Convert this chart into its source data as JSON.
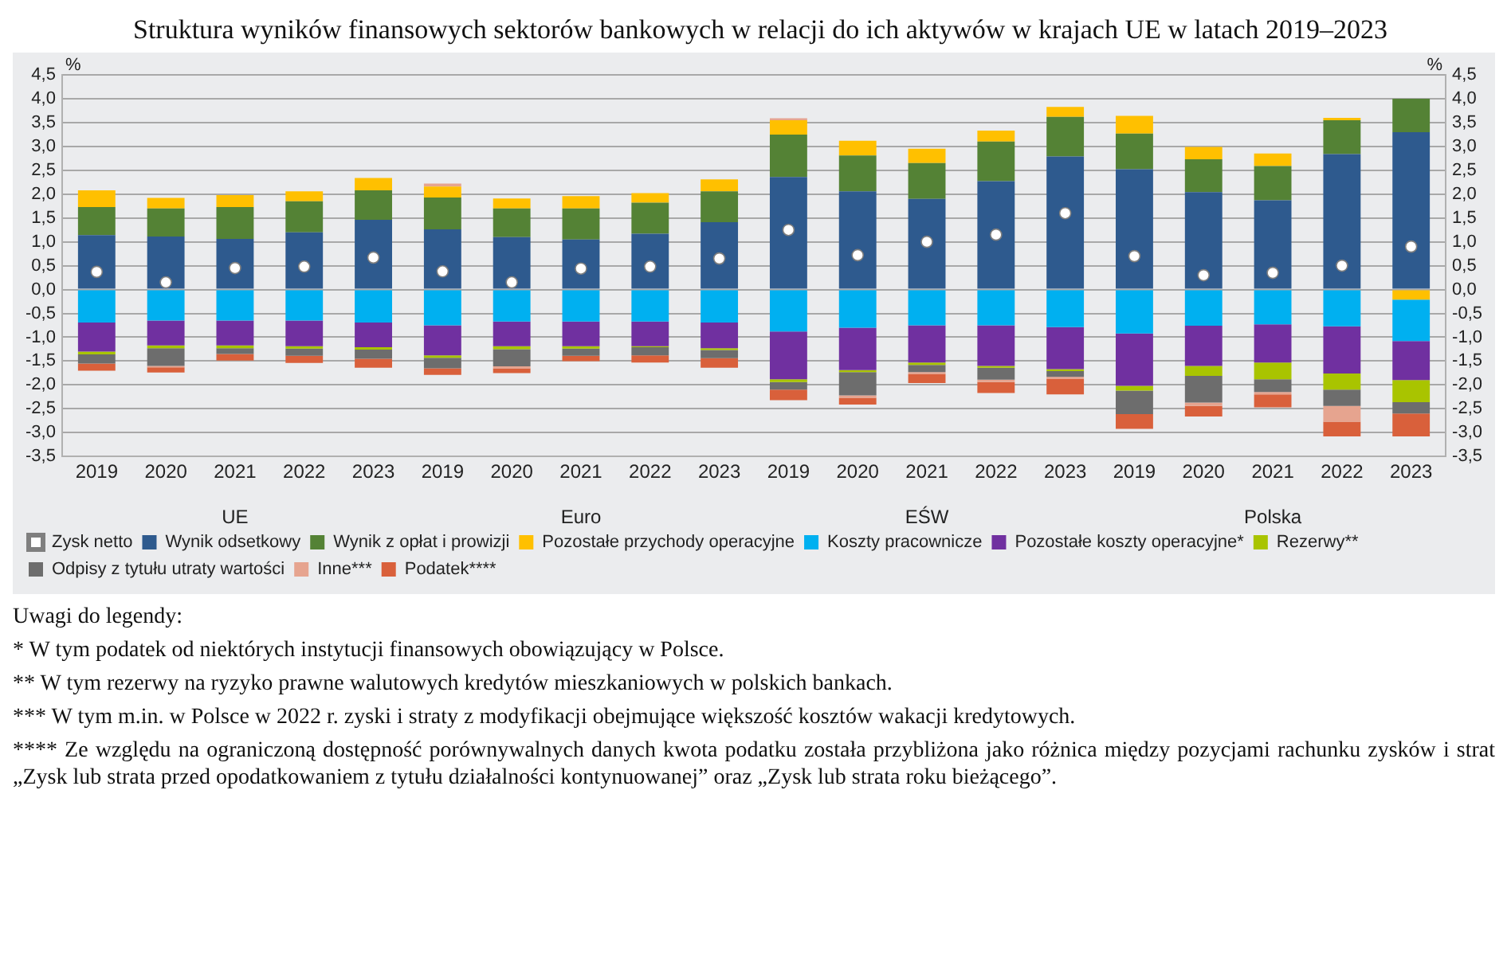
{
  "chart_data": {
    "type": "bar",
    "stacked": true,
    "title": "Struktura wyników finansowych sektorów bankowych w relacji do ich aktywów w krajach UE w latach 2019–2023",
    "ylabel": "%",
    "y2label": "%",
    "categories": [
      "2019",
      "2020",
      "2021",
      "2022",
      "2023",
      "2019",
      "2020",
      "2021",
      "2022",
      "2023",
      "2019",
      "2020",
      "2021",
      "2022",
      "2023",
      "2019",
      "2020",
      "2021",
      "2022",
      "2023"
    ],
    "series": [
      {
        "name": "Wynik odsetkowy",
        "color": "#2e5a8e",
        "values": [
          1.14,
          1.11,
          1.06,
          1.2,
          1.46,
          1.26,
          1.1,
          1.05,
          1.17,
          1.41,
          2.36,
          2.06,
          1.9,
          2.27,
          2.79,
          2.52,
          2.04,
          1.87,
          2.84,
          3.3
        ]
      },
      {
        "name": "Wynik z opłat i prowizji",
        "color": "#548235",
        "values": [
          0.59,
          0.59,
          0.67,
          0.65,
          0.62,
          0.67,
          0.6,
          0.65,
          0.65,
          0.65,
          0.89,
          0.75,
          0.75,
          0.83,
          0.83,
          0.75,
          0.69,
          0.72,
          0.71,
          0.7
        ]
      },
      {
        "name": "Pozostałe przychody operacyjne",
        "color": "#ffc000",
        "values": [
          0.35,
          0.22,
          0.25,
          0.21,
          0.26,
          0.23,
          0.21,
          0.26,
          0.2,
          0.25,
          0.3,
          0.31,
          0.3,
          0.23,
          0.21,
          0.37,
          0.26,
          0.26,
          0.05,
          -0.21
        ]
      },
      {
        "name": "Koszty pracownicze",
        "color": "#00b0f0",
        "values": [
          -0.69,
          -0.65,
          -0.65,
          -0.65,
          -0.69,
          -0.75,
          -0.67,
          -0.67,
          -0.67,
          -0.69,
          -0.88,
          -0.8,
          -0.75,
          -0.75,
          -0.79,
          -0.92,
          -0.76,
          -0.73,
          -0.77,
          -0.87
        ]
      },
      {
        "name": "Pozostałe koszty operacyjne*",
        "color": "#7030a0",
        "values": [
          -0.61,
          -0.52,
          -0.52,
          -0.54,
          -0.52,
          -0.63,
          -0.52,
          -0.52,
          -0.52,
          -0.54,
          -1.0,
          -0.89,
          -0.78,
          -0.85,
          -0.88,
          -1.1,
          -0.84,
          -0.8,
          -0.99,
          -0.82
        ]
      },
      {
        "name": "Rezerwy**",
        "color": "#a9c400",
        "values": [
          -0.06,
          -0.06,
          -0.06,
          -0.05,
          -0.05,
          -0.05,
          -0.06,
          -0.05,
          -0.02,
          -0.04,
          -0.06,
          -0.04,
          -0.05,
          -0.04,
          -0.04,
          -0.1,
          -0.21,
          -0.35,
          -0.34,
          -0.46
        ]
      },
      {
        "name": "Odpisy z tytułu utraty wartości",
        "color": "#6d6d6d",
        "values": [
          -0.19,
          -0.37,
          -0.12,
          -0.15,
          -0.19,
          -0.22,
          -0.36,
          -0.15,
          -0.17,
          -0.17,
          -0.16,
          -0.49,
          -0.15,
          -0.25,
          -0.12,
          -0.49,
          -0.56,
          -0.27,
          -0.34,
          -0.24
        ]
      },
      {
        "name": "Inne***",
        "color": "#e6a48f",
        "values": [
          null,
          -0.03,
          null,
          null,
          null,
          0.06,
          -0.04,
          null,
          null,
          null,
          0.04,
          -0.05,
          -0.04,
          -0.05,
          -0.04,
          null,
          -0.07,
          -0.05,
          -0.33,
          null
        ]
      },
      {
        "name": "Podatek****",
        "color": "#d9603b",
        "values": [
          -0.15,
          -0.11,
          -0.14,
          -0.15,
          -0.19,
          -0.14,
          -0.1,
          -0.11,
          -0.15,
          -0.2,
          -0.22,
          -0.14,
          -0.19,
          -0.23,
          -0.33,
          -0.31,
          -0.22,
          -0.27,
          -0.31,
          -0.48
        ]
      },
      {
        "name": "Zysk netto",
        "type": "scatter",
        "color": "#ffffff",
        "values": [
          0.37,
          0.15,
          0.45,
          0.48,
          0.67,
          0.38,
          0.15,
          0.44,
          0.48,
          0.65,
          1.25,
          0.72,
          1.0,
          1.15,
          1.6,
          0.7,
          0.3,
          0.35,
          0.5,
          0.9
        ]
      }
    ],
    "ylim": [
      -3.5,
      4.5
    ],
    "yticks": [
      {
        "value": -3.5,
        "label": "-3,5"
      },
      {
        "value": -3,
        "label": "-3,0"
      },
      {
        "value": -2.5,
        "label": "-2,5"
      },
      {
        "value": -2,
        "label": "-2,0"
      },
      {
        "value": -1.5,
        "label": "-1,5"
      },
      {
        "value": -1,
        "label": "-1,0"
      },
      {
        "value": -0.5,
        "label": "-0,5"
      },
      {
        "value": 0,
        "label": "0,0"
      },
      {
        "value": 0.5,
        "label": "0,5"
      },
      {
        "value": 1,
        "label": "1,0"
      },
      {
        "value": 1.5,
        "label": "1,5"
      },
      {
        "value": 2,
        "label": "2,0"
      },
      {
        "value": 2.5,
        "label": "2,5"
      },
      {
        "value": 3,
        "label": "3,0"
      },
      {
        "value": 3.5,
        "label": "3,5"
      },
      {
        "value": 4,
        "label": "4,0"
      },
      {
        "value": 4.5,
        "label": "4,5"
      }
    ],
    "y2lim": [
      -3.5,
      4.5
    ],
    "y2ticks": [
      {
        "value": -3.5,
        "label": "-3,5"
      },
      {
        "value": -3,
        "label": "-3,0"
      },
      {
        "value": -2.5,
        "label": "-2,5"
      },
      {
        "value": -2,
        "label": "-2,0"
      },
      {
        "value": -1.5,
        "label": "-1,5"
      },
      {
        "value": -1,
        "label": "-1,0"
      },
      {
        "value": -0.5,
        "label": "-0,5"
      },
      {
        "value": 0,
        "label": "0,0"
      },
      {
        "value": 0.5,
        "label": "0,5"
      },
      {
        "value": 1,
        "label": "1,0"
      },
      {
        "value": 1.5,
        "label": "1,5"
      },
      {
        "value": 2,
        "label": "2,0"
      },
      {
        "value": 2.5,
        "label": "2,5"
      },
      {
        "value": 3,
        "label": "3,0"
      },
      {
        "value": 3.5,
        "label": "3,5"
      },
      {
        "value": 4,
        "label": "4,0"
      },
      {
        "value": 4.5,
        "label": "4,5"
      }
    ],
    "grid": "y",
    "legend": "bottom",
    "marker": "circle",
    "annotations": [
      "UE",
      "Euro",
      "EŚW",
      "Polska",
      "Uwagi do legendy:",
      "* W tym podatek od niektórych instytucji finansowych obowiązujący w Polsce.",
      "** W tym rezerwy na ryzyko prawne walutowych kredytów mieszkaniowych w polskich bankach.",
      "*** W tym m.in. w Polsce w 2022 r. zyski i straty z modyfikacji obejmujące większość kosztów wakacji kredytowych.",
      "**** Ze względu na ograniczoną dostępność porównywalnych danych kwota podatku została przybliżona jako różnica między pozycjami rachunku zysków i strat „Zysk lub strata przed opodatkowaniem z tytułu działalności kontynuowanej” oraz „Zysk lub strata roku bieżącego”."
    ]
  }
}
